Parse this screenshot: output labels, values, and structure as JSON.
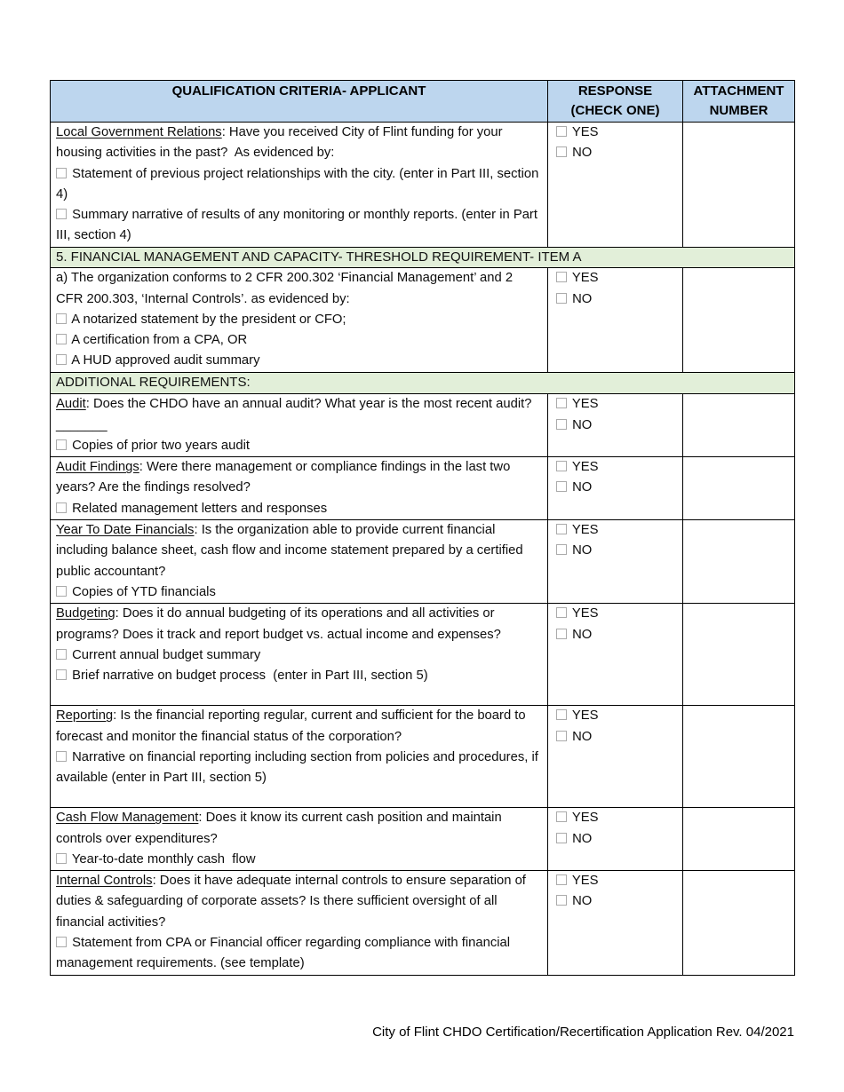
{
  "colors": {
    "header_bg": "#bdd6ee",
    "section_bg": "#e2efd9",
    "border": "#000000",
    "checkbox_outline": "#ababab"
  },
  "table": {
    "headers": {
      "criteria": "QUALIFICATION CRITERIA- APPLICANT",
      "response_line1": "RESPONSE",
      "response_line2": "(CHECK ONE)",
      "attachment_line1": "ATTACHMENT",
      "attachment_line2": "NUMBER"
    },
    "response_options": [
      "YES",
      "NO"
    ],
    "rows": [
      {
        "type": "criteria",
        "title": "Local Government Relations",
        "text": ": Have you received City of Flint funding for your housing activities in the past?  As evidenced by:",
        "checklist": [
          "Statement of previous project relationships with the city. (enter in Part III, section 4)",
          "Summary narrative of results of any monitoring or monthly reports. (enter in Part III, section 4)"
        ]
      },
      {
        "type": "section",
        "label": "5. FINANCIAL MANAGEMENT AND CAPACITY- THRESHOLD REQUIREMENT- ITEM A"
      },
      {
        "type": "criteria",
        "title": "",
        "text": "a) The organization conforms to 2 CFR 200.302 ‘Financial Management’ and 2 CFR 200.303, ‘Internal Controls’. as evidenced by:",
        "checklist": [
          "A notarized statement by the president or CFO;",
          "A certification from a CPA, OR",
          "A HUD approved audit summary"
        ]
      },
      {
        "type": "section",
        "label": "ADDITIONAL REQUIREMENTS:"
      },
      {
        "type": "criteria",
        "title": "Audit",
        "text": ": Does the CHDO have an annual audit? What year is the most recent audit? _______",
        "checklist": [
          "Copies of prior two years audit"
        ]
      },
      {
        "type": "criteria",
        "title": "Audit Findings",
        "text": ": Were there management or compliance findings in the last two years? Are the findings resolved?",
        "checklist": [
          "Related management letters and responses"
        ]
      },
      {
        "type": "criteria",
        "title": "Year To Date Financials",
        "text": ": Is the organization able to provide current financial including balance sheet, cash flow and income statement prepared by a certified public accountant?",
        "checklist": [
          "Copies of YTD financials"
        ]
      },
      {
        "type": "criteria",
        "title": "Budgeting",
        "text": ": Does it do annual budgeting of its operations and all activities or programs? Does it track and report budget vs. actual income and expenses?",
        "checklist": [
          "Current annual budget summary",
          "Brief narrative on budget process  (enter in Part III, section 5)"
        ]
      },
      {
        "type": "criteria",
        "title": "Reporting",
        "text": ": Is the financial reporting regular, current and sufficient for the board to forecast and monitor the financial status of the corporation?",
        "checklist": [
          "Narrative on financial reporting including section from policies and procedures, if available (enter in Part III, section 5)"
        ]
      },
      {
        "type": "criteria",
        "title": "Cash Flow Management",
        "text": ": Does it know its current cash position and maintain controls over expenditures?",
        "checklist": [
          "Year-to-date monthly cash  flow"
        ]
      },
      {
        "type": "criteria",
        "title": "Internal Controls",
        "text": ": Does it have adequate internal controls to ensure separation of duties & safeguarding of corporate assets? Is there sufficient oversight of all financial activities?",
        "checklist": [
          "Statement from CPA or Financial officer regarding compliance with financial management requirements. (see template)"
        ]
      }
    ]
  },
  "page": {
    "footer": "City of Flint CHDO Certification/Recertification Application Rev. 04/2021"
  }
}
